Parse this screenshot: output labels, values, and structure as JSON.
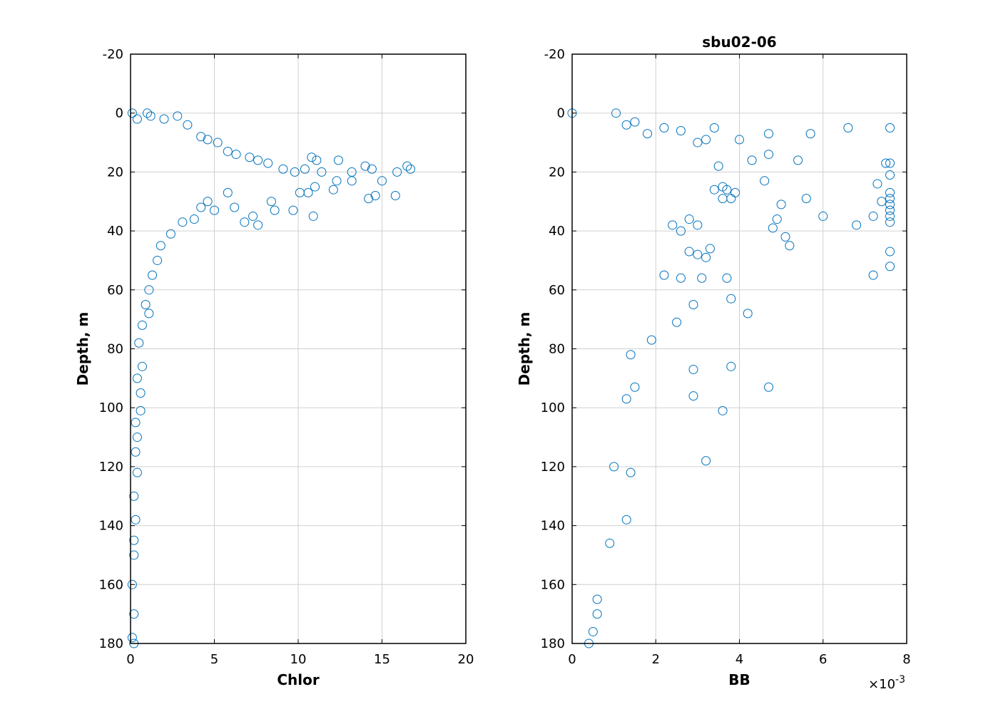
{
  "figure": {
    "marker": "circle",
    "marker_color": "#0072BD"
  },
  "chart_data": [
    {
      "type": "scatter",
      "title": "",
      "xlabel": "Chlor",
      "ylabel": "Depth, m",
      "xlim": [
        0,
        20
      ],
      "ylim": [
        -20,
        180
      ],
      "y_reversed": true,
      "grid": true,
      "xticks": [
        "0",
        "5",
        "10",
        "15",
        "20"
      ],
      "yticks": [
        "-20",
        "0",
        "20",
        "40",
        "60",
        "80",
        "100",
        "120",
        "140",
        "160",
        "180"
      ],
      "xtick_values": [
        0,
        5,
        10,
        15,
        20
      ],
      "ytick_values": [
        -20,
        0,
        20,
        40,
        60,
        80,
        100,
        120,
        140,
        160,
        180
      ],
      "x_exponent": "",
      "color": "#0072BD",
      "points": [
        [
          0.1,
          0
        ],
        [
          0.4,
          2
        ],
        [
          1.0,
          0
        ],
        [
          1.2,
          1
        ],
        [
          2.0,
          2
        ],
        [
          2.8,
          1
        ],
        [
          3.4,
          4
        ],
        [
          4.2,
          8
        ],
        [
          4.6,
          9
        ],
        [
          5.2,
          10
        ],
        [
          5.8,
          13
        ],
        [
          6.3,
          14
        ],
        [
          7.1,
          15
        ],
        [
          7.6,
          16
        ],
        [
          8.2,
          17
        ],
        [
          9.1,
          19
        ],
        [
          9.8,
          20
        ],
        [
          10.4,
          19
        ],
        [
          10.8,
          15
        ],
        [
          11.1,
          16
        ],
        [
          11.4,
          20
        ],
        [
          12.4,
          16
        ],
        [
          12.3,
          23
        ],
        [
          12.1,
          26
        ],
        [
          13.2,
          20
        ],
        [
          13.2,
          23
        ],
        [
          14.0,
          18
        ],
        [
          14.4,
          19
        ],
        [
          14.2,
          29
        ],
        [
          14.6,
          28
        ],
        [
          15.0,
          23
        ],
        [
          15.9,
          20
        ],
        [
          15.8,
          28
        ],
        [
          16.5,
          18
        ],
        [
          16.7,
          19
        ],
        [
          10.6,
          27
        ],
        [
          10.1,
          27
        ],
        [
          11.0,
          25
        ],
        [
          9.7,
          33
        ],
        [
          10.9,
          35
        ],
        [
          8.6,
          33
        ],
        [
          8.4,
          30
        ],
        [
          7.6,
          38
        ],
        [
          6.8,
          37
        ],
        [
          7.3,
          35
        ],
        [
          6.2,
          32
        ],
        [
          5.0,
          33
        ],
        [
          5.8,
          27
        ],
        [
          4.6,
          30
        ],
        [
          4.2,
          32
        ],
        [
          3.8,
          36
        ],
        [
          2.4,
          41
        ],
        [
          3.1,
          37
        ],
        [
          1.8,
          45
        ],
        [
          1.6,
          50
        ],
        [
          1.3,
          55
        ],
        [
          1.1,
          60
        ],
        [
          0.9,
          65
        ],
        [
          1.1,
          68
        ],
        [
          0.7,
          72
        ],
        [
          0.5,
          78
        ],
        [
          0.7,
          86
        ],
        [
          0.4,
          90
        ],
        [
          0.6,
          95
        ],
        [
          0.6,
          101
        ],
        [
          0.3,
          105
        ],
        [
          0.4,
          110
        ],
        [
          0.3,
          115
        ],
        [
          0.4,
          122
        ],
        [
          0.2,
          130
        ],
        [
          0.3,
          138
        ],
        [
          0.2,
          145
        ],
        [
          0.2,
          150
        ],
        [
          0.1,
          160
        ],
        [
          0.2,
          170
        ],
        [
          0.1,
          178
        ],
        [
          0.2,
          180
        ]
      ]
    },
    {
      "type": "scatter",
      "title": "sbu02-06",
      "xlabel": "BB",
      "ylabel": "Depth, m",
      "xlim": [
        0,
        8
      ],
      "ylim": [
        -20,
        180
      ],
      "y_reversed": true,
      "grid": true,
      "xticks": [
        "0",
        "2",
        "4",
        "6",
        "8"
      ],
      "yticks": [
        "-20",
        "0",
        "20",
        "40",
        "60",
        "80",
        "100",
        "120",
        "140",
        "160",
        "180"
      ],
      "xtick_values": [
        0,
        2,
        4,
        6,
        8
      ],
      "ytick_values": [
        -20,
        0,
        20,
        40,
        60,
        80,
        100,
        120,
        140,
        160,
        180
      ],
      "x_exponent": "×10",
      "x_exponent_power": "-3",
      "color": "#0072BD",
      "points": [
        [
          0.0,
          0
        ],
        [
          1.05,
          0
        ],
        [
          1.3,
          4
        ],
        [
          1.5,
          3
        ],
        [
          1.8,
          7
        ],
        [
          2.2,
          5
        ],
        [
          2.6,
          6
        ],
        [
          3.0,
          10
        ],
        [
          3.4,
          5
        ],
        [
          3.2,
          9
        ],
        [
          4.0,
          9
        ],
        [
          4.7,
          7
        ],
        [
          5.7,
          7
        ],
        [
          6.6,
          5
        ],
        [
          7.6,
          5
        ],
        [
          4.3,
          16
        ],
        [
          4.7,
          14
        ],
        [
          5.4,
          16
        ],
        [
          3.5,
          18
        ],
        [
          7.5,
          17
        ],
        [
          7.6,
          17
        ],
        [
          7.6,
          21
        ],
        [
          7.3,
          24
        ],
        [
          4.6,
          23
        ],
        [
          3.6,
          25
        ],
        [
          3.7,
          26
        ],
        [
          3.4,
          26
        ],
        [
          3.9,
          27
        ],
        [
          3.6,
          29
        ],
        [
          3.8,
          29
        ],
        [
          5.0,
          31
        ],
        [
          5.6,
          29
        ],
        [
          6.0,
          35
        ],
        [
          7.6,
          27
        ],
        [
          7.6,
          29
        ],
        [
          7.6,
          31
        ],
        [
          7.6,
          33
        ],
        [
          7.6,
          35
        ],
        [
          7.6,
          37
        ],
        [
          7.2,
          35
        ],
        [
          7.4,
          30
        ],
        [
          6.8,
          38
        ],
        [
          4.8,
          39
        ],
        [
          4.9,
          36
        ],
        [
          5.1,
          42
        ],
        [
          5.2,
          45
        ],
        [
          3.0,
          38
        ],
        [
          2.8,
          36
        ],
        [
          2.6,
          40
        ],
        [
          2.4,
          38
        ],
        [
          3.3,
          46
        ],
        [
          2.8,
          47
        ],
        [
          3.0,
          48
        ],
        [
          3.2,
          49
        ],
        [
          2.2,
          55
        ],
        [
          2.6,
          56
        ],
        [
          3.1,
          56
        ],
        [
          3.7,
          56
        ],
        [
          7.6,
          47
        ],
        [
          7.6,
          52
        ],
        [
          7.2,
          55
        ],
        [
          3.8,
          63
        ],
        [
          2.9,
          65
        ],
        [
          4.2,
          68
        ],
        [
          2.5,
          71
        ],
        [
          1.9,
          77
        ],
        [
          1.4,
          82
        ],
        [
          2.9,
          87
        ],
        [
          3.8,
          86
        ],
        [
          4.7,
          93
        ],
        [
          2.9,
          96
        ],
        [
          1.5,
          93
        ],
        [
          1.3,
          97
        ],
        [
          3.6,
          101
        ],
        [
          3.2,
          118
        ],
        [
          1.4,
          122
        ],
        [
          1.0,
          120
        ],
        [
          1.3,
          138
        ],
        [
          0.9,
          146
        ],
        [
          0.6,
          165
        ],
        [
          0.6,
          170
        ],
        [
          0.5,
          176
        ],
        [
          0.4,
          180
        ]
      ]
    }
  ]
}
